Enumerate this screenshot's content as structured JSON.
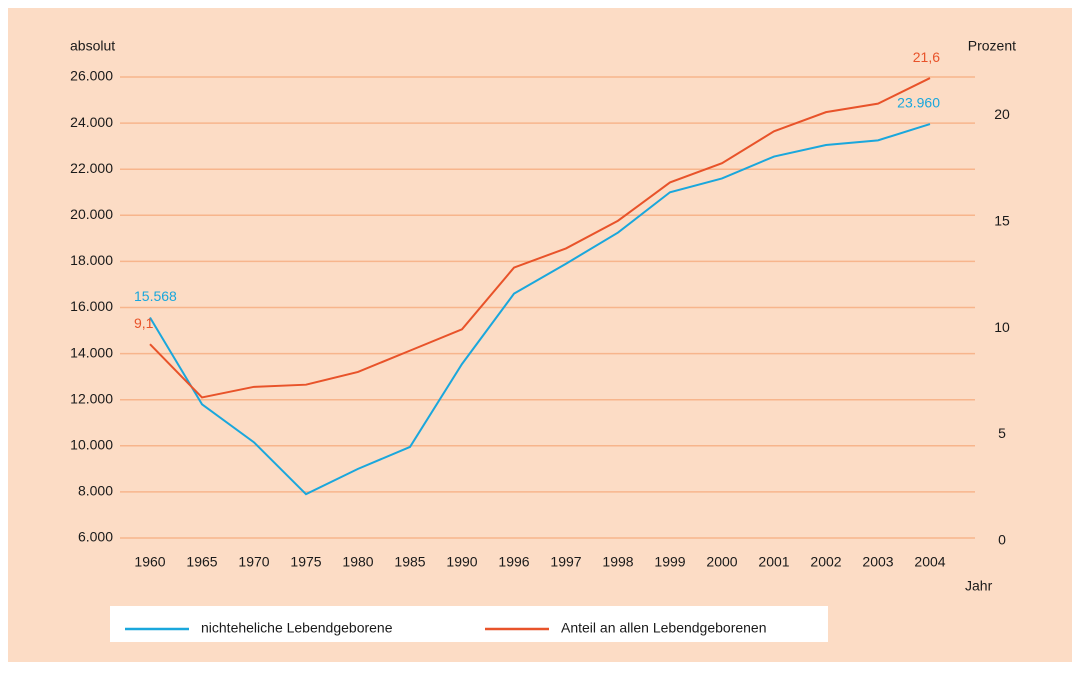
{
  "chart_data": {
    "type": "line",
    "y_label": "absolut",
    "y2_label": "Prozent",
    "x_label": "Jahr",
    "categories": [
      "1960",
      "1965",
      "1970",
      "1975",
      "1980",
      "1985",
      "1990",
      "1996",
      "1997",
      "1998",
      "1999",
      "2000",
      "2001",
      "2002",
      "2003",
      "2004"
    ],
    "series": [
      {
        "name": "nichteheliche Lebendgeborene",
        "color": "#1aa7dc",
        "axis": "y",
        "values": [
          15568,
          11800,
          10150,
          7900,
          9000,
          9950,
          13550,
          16600,
          17900,
          19250,
          21000,
          21600,
          22550,
          23050,
          23250,
          23960
        ],
        "value_labels": [
          "15.568",
          null,
          null,
          null,
          null,
          null,
          null,
          null,
          null,
          null,
          null,
          null,
          null,
          null,
          null,
          "23.960"
        ]
      },
      {
        "name": "Anteil an allen Lebendgeborenen",
        "color": "#e8532a",
        "axis": "y2",
        "values": [
          9.1,
          6.6,
          7.1,
          7.2,
          7.8,
          8.8,
          9.8,
          12.7,
          13.6,
          14.9,
          16.7,
          17.6,
          19.1,
          20.0,
          20.4,
          21.6
        ],
        "value_labels": [
          "9,1",
          null,
          null,
          null,
          null,
          null,
          null,
          null,
          null,
          null,
          null,
          null,
          null,
          null,
          null,
          "21,6"
        ]
      }
    ],
    "ylim": [
      6000,
      26000
    ],
    "yticks": [
      {
        "value": 6000,
        "label": "6.000"
      },
      {
        "value": 8000,
        "label": "8.000"
      },
      {
        "value": 10000,
        "label": "10.000"
      },
      {
        "value": 12000,
        "label": "12.000"
      },
      {
        "value": 14000,
        "label": "14.000"
      },
      {
        "value": 16000,
        "label": "16.000"
      },
      {
        "value": 18000,
        "label": "18.000"
      },
      {
        "value": 20000,
        "label": "20.000"
      },
      {
        "value": 22000,
        "label": "22.000"
      },
      {
        "value": 24000,
        "label": "24.000"
      },
      {
        "value": 26000,
        "label": "26.000"
      }
    ],
    "y2lim": [
      0,
      21.65
    ],
    "y2ticks": [
      0,
      5,
      10,
      15,
      20
    ],
    "grid": true
  }
}
